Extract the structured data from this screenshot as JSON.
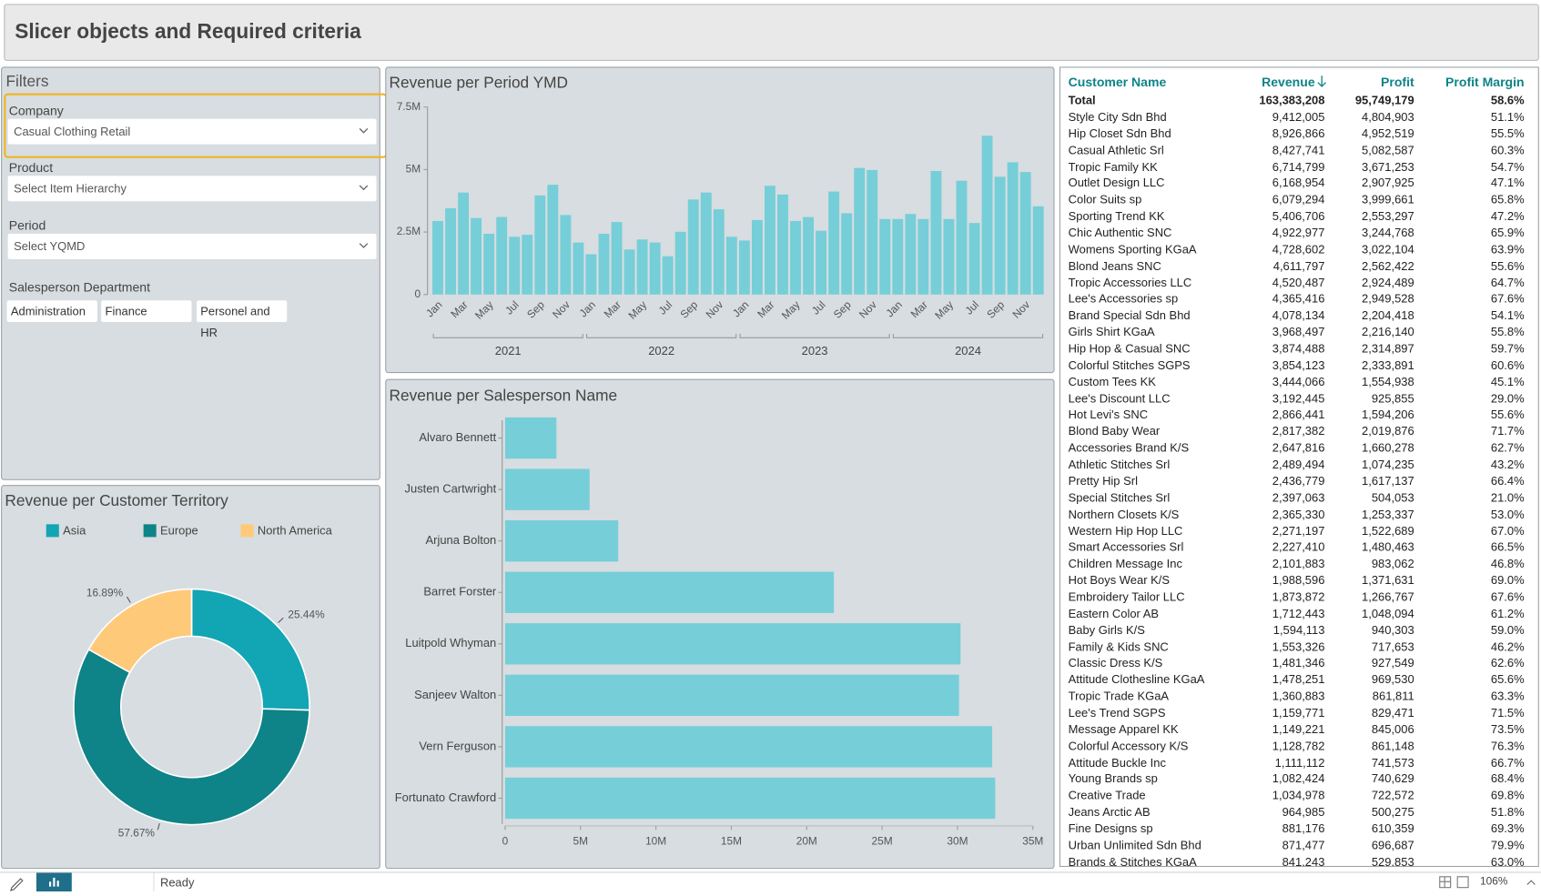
{
  "header": {
    "title": "Slicer objects and Required criteria"
  },
  "filters": {
    "title": "Filters",
    "slicers": [
      {
        "label": "Company",
        "value": "Casual Clothing Retail"
      },
      {
        "label": "Product",
        "value": "Select Item Hierarchy"
      },
      {
        "label": "Period",
        "value": "Select YQMD"
      }
    ],
    "department": {
      "label": "Salesperson Department",
      "options": [
        "Administration",
        "Finance",
        "Personel and HR"
      ]
    }
  },
  "chart_data": [
    {
      "type": "bar",
      "title": "Revenue per Period YMD",
      "categories": [
        "Jan",
        null,
        "Mar",
        null,
        "May",
        null,
        "Jul",
        null,
        "Sep",
        null,
        "Nov",
        null,
        "Jan",
        null,
        "Mar",
        null,
        "May",
        null,
        "Jul",
        null,
        "Sep",
        null,
        "Nov",
        null,
        "Jan",
        null,
        "Mar",
        null,
        "May",
        null,
        "Jul",
        null,
        "Sep",
        null,
        "Nov",
        null,
        "Jan",
        null,
        "Mar",
        null,
        "May",
        null,
        "Jul",
        null,
        "Sep",
        null,
        "Nov",
        null
      ],
      "x_groups": [
        "2021",
        "2022",
        "2023",
        "2024"
      ],
      "values": [
        2940000,
        3450000,
        4080000,
        3060000,
        2430000,
        3100000,
        2310000,
        2390000,
        3960000,
        4390000,
        3180000,
        2080000,
        1610000,
        2430000,
        2900000,
        1800000,
        2200000,
        2080000,
        1530000,
        2510000,
        3800000,
        4080000,
        3410000,
        2310000,
        2160000,
        2980000,
        4350000,
        4000000,
        2940000,
        3100000,
        2550000,
        4120000,
        3250000,
        5060000,
        4980000,
        3020000,
        3020000,
        3220000,
        3020000,
        4940000,
        3020000,
        4550000,
        2860000,
        6350000,
        4710000,
        5290000,
        4900000,
        3530000
      ],
      "color": "#76ced8",
      "ylim": [
        0,
        7500000
      ],
      "yticks": [
        0,
        {
          "value": 2500000,
          "label": "2.5M"
        },
        {
          "value": 5000000,
          "label": "5M"
        },
        {
          "value": 7500000,
          "label": "7.5M"
        }
      ],
      "grid": false
    },
    {
      "type": "hbar",
      "title": "Revenue per Salesperson Name",
      "categories": [
        "Alvaro Bennett",
        "Justen Cartwright",
        "Arjuna Bolton",
        "Barret Forster",
        "Luitpold Whyman",
        "Sanjeev Walton",
        "Vern Ferguson",
        "Fortunato Crawford"
      ],
      "values": [
        3400000,
        5600000,
        7500000,
        21800000,
        30200000,
        30100000,
        32300000,
        32500000
      ],
      "color": "#76ced8",
      "xlim": [
        0,
        35000000
      ],
      "xticks": [
        0,
        {
          "value": 5000000,
          "label": "5M"
        },
        {
          "value": 10000000,
          "label": "10M"
        },
        {
          "value": 15000000,
          "label": "15M"
        },
        {
          "value": 20000000,
          "label": "20M"
        },
        {
          "value": 25000000,
          "label": "25M"
        },
        {
          "value": 30000000,
          "label": "30M"
        },
        {
          "value": 35000000,
          "label": "35M"
        }
      ]
    },
    {
      "type": "donut",
      "title": "Revenue per Customer Territory",
      "categories": [
        "Asia",
        "Europe",
        "North America"
      ],
      "values": [
        25.44,
        57.67,
        16.89
      ],
      "value_labels": [
        "25.44%",
        "57.67%",
        "16.89%"
      ],
      "colors": [
        "#12a5b4",
        "#0e8388",
        "#ffc97a"
      ],
      "legend": "top"
    }
  ],
  "table": {
    "columns": [
      "Customer Name",
      "Revenue",
      "Profit",
      "Profit Margin"
    ],
    "total": [
      "Total",
      "163,383,208",
      "95,749,179",
      "58.6%"
    ],
    "rows": [
      [
        "Style City Sdn Bhd",
        "9,412,005",
        "4,804,903",
        "51.1%"
      ],
      [
        "Hip Closet Sdn Bhd",
        "8,926,866",
        "4,952,519",
        "55.5%"
      ],
      [
        "Casual Athletic Srl",
        "8,427,741",
        "5,082,587",
        "60.3%"
      ],
      [
        "Tropic Family KK",
        "6,714,799",
        "3,671,253",
        "54.7%"
      ],
      [
        "Outlet Design LLC",
        "6,168,954",
        "2,907,925",
        "47.1%"
      ],
      [
        "Color Suits sp",
        "6,079,294",
        "3,999,661",
        "65.8%"
      ],
      [
        "Sporting Trend KK",
        "5,406,706",
        "2,553,297",
        "47.2%"
      ],
      [
        "Chic Authentic SNC",
        "4,922,977",
        "3,244,768",
        "65.9%"
      ],
      [
        "Womens Sporting KGaA",
        "4,728,602",
        "3,022,104",
        "63.9%"
      ],
      [
        "Blond Jeans SNC",
        "4,611,797",
        "2,562,422",
        "55.6%"
      ],
      [
        "Tropic Accessories LLC",
        "4,520,487",
        "2,924,489",
        "64.7%"
      ],
      [
        "Lee's Accessories sp",
        "4,365,416",
        "2,949,528",
        "67.6%"
      ],
      [
        "Brand Special Sdn Bhd",
        "4,078,134",
        "2,204,418",
        "54.1%"
      ],
      [
        "Girls Shirt KGaA",
        "3,968,497",
        "2,216,140",
        "55.8%"
      ],
      [
        "Hip Hop & Casual SNC",
        "3,874,488",
        "2,314,897",
        "59.7%"
      ],
      [
        "Colorful Stitches SGPS",
        "3,854,123",
        "2,333,891",
        "60.6%"
      ],
      [
        "Custom Tees KK",
        "3,444,066",
        "1,554,938",
        "45.1%"
      ],
      [
        "Lee's Discount LLC",
        "3,192,445",
        "925,855",
        "29.0%"
      ],
      [
        "Hot Levi's SNC",
        "2,866,441",
        "1,594,206",
        "55.6%"
      ],
      [
        "Blond Baby Wear",
        "2,817,382",
        "2,019,876",
        "71.7%"
      ],
      [
        "Accessories Brand K/S",
        "2,647,816",
        "1,660,278",
        "62.7%"
      ],
      [
        "Athletic Stitches Srl",
        "2,489,494",
        "1,074,235",
        "43.2%"
      ],
      [
        "Pretty Hip Srl",
        "2,436,779",
        "1,617,137",
        "66.4%"
      ],
      [
        "Special Stitches Srl",
        "2,397,063",
        "504,053",
        "21.0%"
      ],
      [
        "Northern Closets K/S",
        "2,365,330",
        "1,253,337",
        "53.0%"
      ],
      [
        "Western Hip Hop LLC",
        "2,271,197",
        "1,522,689",
        "67.0%"
      ],
      [
        "Smart Accessories Srl",
        "2,227,410",
        "1,480,463",
        "66.5%"
      ],
      [
        "Children Message Inc",
        "2,101,883",
        "983,062",
        "46.8%"
      ],
      [
        "Hot Boys Wear K/S",
        "1,988,596",
        "1,371,631",
        "69.0%"
      ],
      [
        "Embroidery Tailor LLC",
        "1,873,872",
        "1,266,767",
        "67.6%"
      ],
      [
        "Eastern Color AB",
        "1,712,443",
        "1,048,094",
        "61.2%"
      ],
      [
        "Baby Girls K/S",
        "1,594,113",
        "940,303",
        "59.0%"
      ],
      [
        "Family & Kids SNC",
        "1,553,326",
        "717,653",
        "46.2%"
      ],
      [
        "Classic Dress K/S",
        "1,481,346",
        "927,549",
        "62.6%"
      ],
      [
        "Attitude Clothesline KGaA",
        "1,478,251",
        "969,530",
        "65.6%"
      ],
      [
        "Tropic Trade KGaA",
        "1,360,883",
        "861,811",
        "63.3%"
      ],
      [
        "Lee's Trend SGPS",
        "1,159,771",
        "829,471",
        "71.5%"
      ],
      [
        "Message Apparel KK",
        "1,149,221",
        "845,006",
        "73.5%"
      ],
      [
        "Colorful Accessory K/S",
        "1,128,782",
        "861,148",
        "76.3%"
      ],
      [
        "Attitude Buckle Inc",
        "1,111,112",
        "741,573",
        "66.7%"
      ],
      [
        "Young Brands sp",
        "1,082,424",
        "740,629",
        "68.4%"
      ],
      [
        "Creative Trade",
        "1,034,978",
        "722,572",
        "69.8%"
      ],
      [
        "Jeans Arctic AB",
        "964,985",
        "500,275",
        "51.8%"
      ],
      [
        "Fine Designs sp",
        "881,176",
        "610,359",
        "69.3%"
      ],
      [
        "Urban Unlimited Sdn Bhd",
        "871,477",
        "696,687",
        "79.9%"
      ],
      [
        "Brands & Stitches KGaA",
        "841,243",
        "529,853",
        "63.0%"
      ]
    ]
  },
  "status": {
    "text": "Ready",
    "zoom": "106%"
  }
}
